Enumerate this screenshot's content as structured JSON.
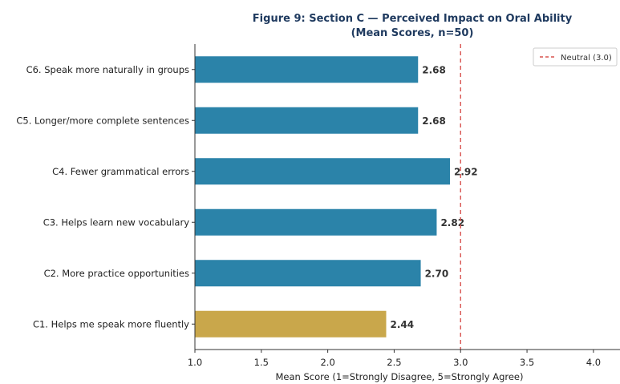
{
  "chart_data": {
    "type": "bar",
    "orientation": "horizontal",
    "title_lines": [
      "Figure 9: Section C — Perceived Impact on Oral Ability",
      "(Mean Scores, n=50)"
    ],
    "xlabel": "Mean Score (1=Strongly Disagree, 5=Strongly Agree)",
    "ylabel": "",
    "xlim": [
      1.0,
      4.2
    ],
    "xticks": [
      1.0,
      1.5,
      2.0,
      2.5,
      3.0,
      3.5,
      4.0
    ],
    "xtick_labels": [
      "1.0",
      "1.5",
      "2.0",
      "2.5",
      "3.0",
      "3.5",
      "4.0"
    ],
    "categories": [
      "C1. Helps me speak more fluently",
      "C2. More practice opportunities",
      "C3. Helps learn new vocabulary",
      "C4. Fewer grammatical errors",
      "C5. Longer/more complete sentences",
      "C6. Speak more naturally in groups"
    ],
    "values": [
      2.44,
      2.7,
      2.82,
      2.92,
      2.68,
      2.68
    ],
    "value_labels": [
      "2.44",
      "2.70",
      "2.82",
      "2.92",
      "2.68",
      "2.68"
    ],
    "bar_colors": [
      "#c9a74b",
      "#2b83a9",
      "#2b83a9",
      "#2b83a9",
      "#2b83a9",
      "#2b83a9"
    ],
    "reference_line": {
      "value": 3.0,
      "label": "Neutral (3.0)",
      "color": "#d9534f",
      "style": "dashed"
    },
    "legend": {
      "position": "top-right",
      "entries": [
        "Neutral (3.0)"
      ]
    },
    "grid": false
  }
}
